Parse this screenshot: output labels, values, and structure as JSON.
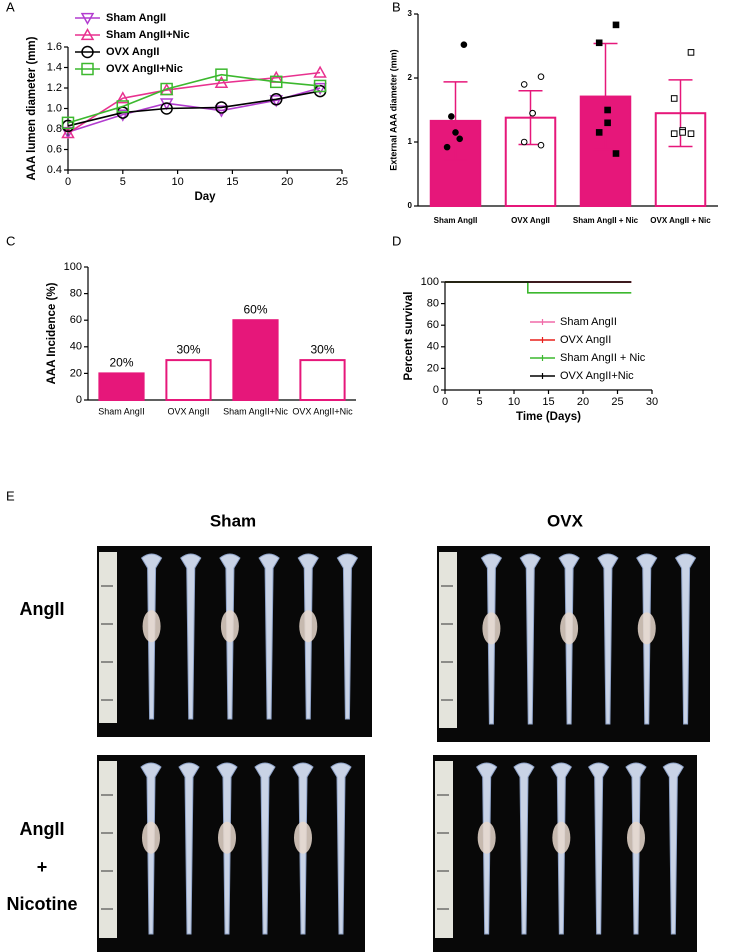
{
  "chart_data": [
    {
      "type": "line",
      "panel": "A",
      "xlabel": "Day",
      "ylabel": "AAA lumen diameter (mm)",
      "x": [
        0,
        5,
        9,
        14,
        19,
        23
      ],
      "xlim": [
        0,
        25
      ],
      "xticks": [
        0,
        5,
        10,
        15,
        20,
        25
      ],
      "ylim": [
        0.4,
        1.6
      ],
      "yticks": [
        0.4,
        0.6,
        0.8,
        {
          "value": 1,
          "label": "1.0"
        },
        1.2,
        1.4,
        1.6
      ],
      "legend": "upper left",
      "series": [
        {
          "name": "Sham AngII",
          "color": "#b23ccf",
          "marker": "triangle-down",
          "values": [
            0.77,
            0.94,
            1.05,
            0.98,
            1.08,
            1.2
          ]
        },
        {
          "name": "Sham AngII+Nic",
          "color": "#e8318f",
          "marker": "triangle-up",
          "values": [
            0.76,
            1.1,
            1.18,
            1.25,
            1.3,
            1.35
          ]
        },
        {
          "name": "OVX AngII",
          "color": "#000000",
          "marker": "circle",
          "values": [
            0.83,
            0.96,
            1.0,
            1.01,
            1.09,
            1.17
          ]
        },
        {
          "name": "OVX AngII+Nic",
          "color": "#3cb82e",
          "marker": "square",
          "values": [
            0.86,
            1.02,
            1.19,
            1.33,
            1.26,
            1.22
          ]
        }
      ]
    },
    {
      "type": "bar",
      "panel": "B",
      "ylabel": "External AAA diameter (mm)",
      "categories": [
        "Sham AngII",
        "OVX AngII",
        "Sham AngII + Nic",
        "OVX AngII + Nic"
      ],
      "values": [
        1.33,
        1.38,
        1.71,
        1.45
      ],
      "errors": [
        0.61,
        0.42,
        0.83,
        0.52
      ],
      "colors": [
        "#e6177a",
        "#ffffff",
        "#e6177a",
        "#ffffff"
      ],
      "edge_color": "#e6177a",
      "points": [
        [
          2.52,
          1.4,
          1.15,
          1.05,
          0.92
        ],
        [
          2.02,
          1.9,
          1.45,
          1.45,
          1.0,
          0.95
        ],
        [
          2.83,
          2.55,
          1.5,
          1.3,
          1.15,
          0.82
        ],
        [
          2.4,
          1.68,
          1.18,
          1.15,
          1.13,
          1.13
        ]
      ],
      "point_colors": [
        "#000000",
        "#ffffff",
        "#000000",
        "#ffffff"
      ],
      "point_markers": [
        "circle",
        "circle",
        "square",
        "square"
      ],
      "ylim": [
        0,
        3
      ],
      "yticks": [
        0,
        1,
        2,
        3
      ]
    },
    {
      "type": "bar",
      "panel": "C",
      "ylabel": "AAA Incidence (%)",
      "categories": [
        "Sham AngII",
        "OVX AngII",
        "Sham AngII+Nic",
        "OVX AngII+Nic"
      ],
      "values": [
        20,
        30,
        60,
        30
      ],
      "value_labels": [
        "20%",
        "30%",
        "60%",
        "30%"
      ],
      "colors": [
        "#e6177a",
        "#ffffff",
        "#e6177a",
        "#ffffff"
      ],
      "edge_color": "#e6177a",
      "ylim": [
        0,
        100
      ],
      "yticks": [
        0,
        20,
        40,
        60,
        80,
        100
      ]
    },
    {
      "type": "line",
      "panel": "D",
      "xlabel": "Time (Days)",
      "ylabel": "Percent survival",
      "xlim": [
        0,
        30
      ],
      "xticks": [
        0,
        5,
        10,
        15,
        20,
        25,
        30
      ],
      "ylim": [
        0,
        100
      ],
      "yticks": [
        0,
        20,
        40,
        60,
        80,
        100
      ],
      "legend": "center right",
      "series": [
        {
          "name": "Sham AngII",
          "color": "#f06aa8",
          "x": [
            0,
            27
          ],
          "values": [
            100,
            100
          ]
        },
        {
          "name": "OVX AngII",
          "color": "#e8201c",
          "x": [
            0,
            27
          ],
          "values": [
            100,
            100
          ]
        },
        {
          "name": "Sham AngII + Nic",
          "color": "#3cb82e",
          "x": [
            0,
            12,
            12,
            27
          ],
          "values": [
            100,
            100,
            90,
            90
          ]
        },
        {
          "name": "OVX AngII+Nic",
          "color": "#000000",
          "x": [
            0,
            27
          ],
          "values": [
            100,
            100
          ]
        }
      ]
    }
  ],
  "photo_panel": {
    "label": "E",
    "columns": [
      "Sham",
      "OVX"
    ],
    "rows": [
      {
        "lines": [
          "AngII"
        ]
      },
      {
        "lines": [
          "AngII",
          "+",
          "Nicotine"
        ]
      }
    ]
  }
}
